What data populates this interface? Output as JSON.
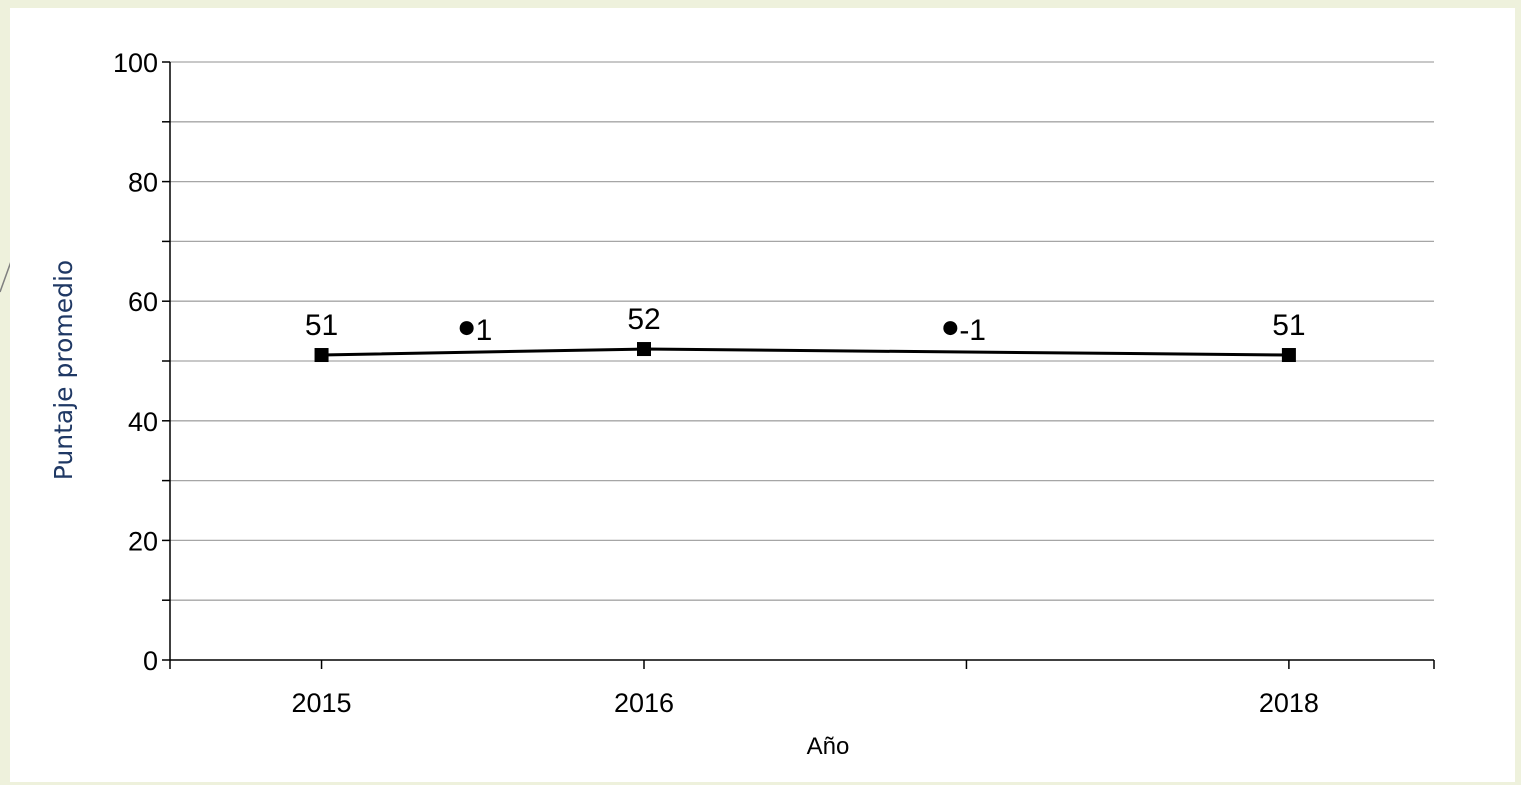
{
  "colors": {
    "background": "#eef1dc",
    "plot_background": "#ffffff",
    "ylabel": "#1f3864",
    "line": "#000000",
    "gridline": "#a6a6a6"
  },
  "chart_data": {
    "type": "line",
    "title": "",
    "xlabel": "Año",
    "ylabel": "Puntaje promedio",
    "ylim": [
      0,
      100
    ],
    "yticks": [
      0,
      20,
      40,
      60,
      80,
      100
    ],
    "xlim": [
      2014.53,
      2018.45
    ],
    "xtick_positions": [
      2015,
      2016,
      2017,
      2018
    ],
    "xtick_labels": [
      "2015",
      "2016",
      "",
      "2018"
    ],
    "grid": true,
    "x": [
      2015,
      2016,
      2018
    ],
    "values": [
      51,
      52,
      51
    ],
    "data_labels": [
      "51",
      "52",
      "51"
    ],
    "changes": [
      {
        "x": 2015.45,
        "y": 55.5,
        "label": "1"
      },
      {
        "x": 2016.95,
        "y": 55.5,
        "label": "-1"
      }
    ]
  }
}
